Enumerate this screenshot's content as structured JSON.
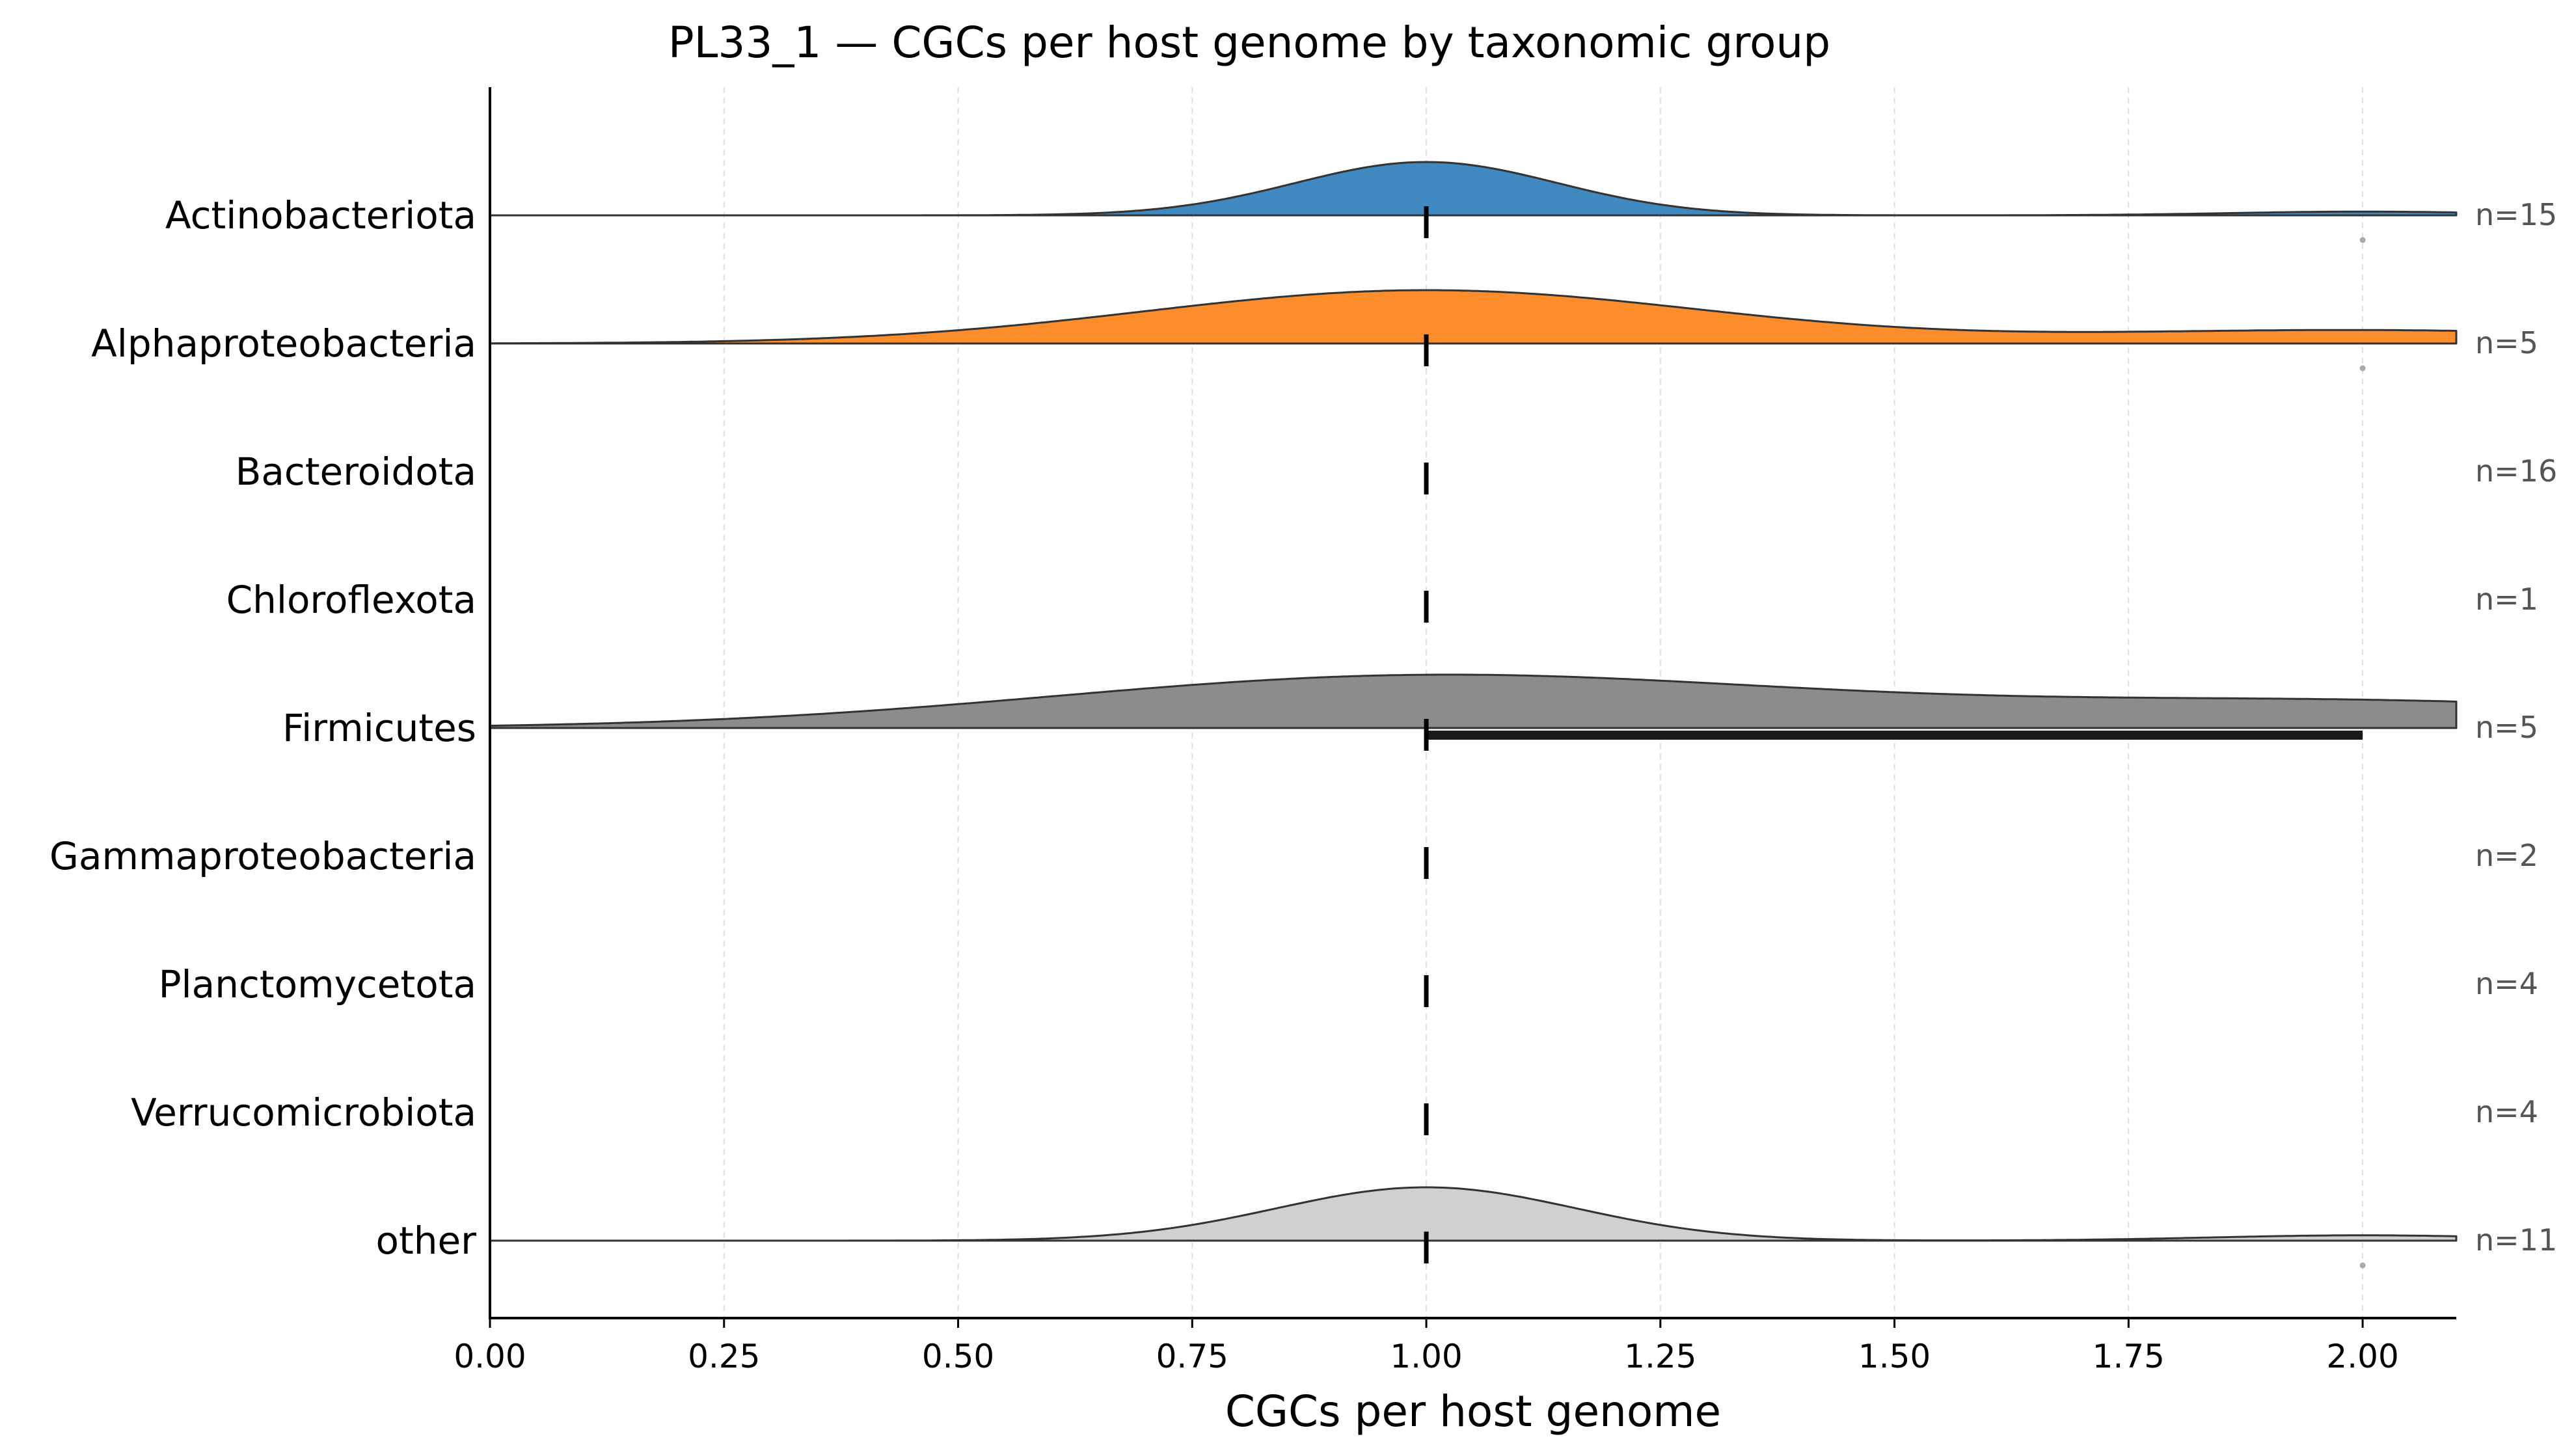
{
  "chart_data": {
    "type": "ridgeline",
    "title": "PL33_1 — CGCs per host genome by taxonomic group",
    "xlabel": "CGCs per host genome",
    "ylabel": "",
    "xlim": [
      0.0,
      2.1
    ],
    "xticks": [
      0.0,
      0.25,
      0.5,
      0.75,
      1.0,
      1.25,
      1.5,
      1.75,
      2.0
    ],
    "xtick_labels": [
      "0.00",
      "0.25",
      "0.50",
      "0.75",
      "1.00",
      "1.25",
      "1.50",
      "1.75",
      "2.00"
    ],
    "grid": "vertical-dashed",
    "legend": "none",
    "series": [
      {
        "name": "Actinobacteriota",
        "n_label": "n=15",
        "color": "#3f88c0",
        "density": true,
        "median": 1.0,
        "iqr": [
          1.0,
          1.0
        ],
        "outliers": [
          2.0
        ],
        "kde_components": [
          {
            "mu": 1.0,
            "sigma": 0.14,
            "w": 1.0
          },
          {
            "mu": 2.0,
            "sigma": 0.14,
            "w": 0.07
          }
        ]
      },
      {
        "name": "Alphaproteobacteria",
        "n_label": "n=5",
        "color": "#fd8d2b",
        "density": true,
        "median": 1.0,
        "iqr": [
          1.0,
          1.0
        ],
        "outliers": [
          2.0
        ],
        "kde_components": [
          {
            "mu": 1.0,
            "sigma": 0.3,
            "w": 1.0
          },
          {
            "mu": 2.0,
            "sigma": 0.3,
            "w": 0.25
          }
        ]
      },
      {
        "name": "Bacteroidota",
        "n_label": "n=16",
        "color": "#888888",
        "density": false,
        "median": 1.0,
        "iqr": [
          1.0,
          1.0
        ],
        "outliers": [],
        "kde_components": []
      },
      {
        "name": "Chloroflexota",
        "n_label": "n=1",
        "color": "#888888",
        "density": false,
        "median": 1.0,
        "iqr": [
          1.0,
          1.0
        ],
        "outliers": [],
        "kde_components": []
      },
      {
        "name": "Firmicutes",
        "n_label": "n=5",
        "color": "#8c8c8c",
        "density": true,
        "median": 1.0,
        "iqr": [
          1.0,
          2.0
        ],
        "outliers": [],
        "kde_components": [
          {
            "mu": 1.0,
            "sigma": 0.4,
            "w": 1.0
          },
          {
            "mu": 2.0,
            "sigma": 0.4,
            "w": 0.5
          }
        ]
      },
      {
        "name": "Gammaproteobacteria",
        "n_label": "n=2",
        "color": "#888888",
        "density": false,
        "median": 1.0,
        "iqr": [
          1.0,
          1.0
        ],
        "outliers": [],
        "kde_components": []
      },
      {
        "name": "Planctomycetota",
        "n_label": "n=4",
        "color": "#888888",
        "density": false,
        "median": 1.0,
        "iqr": [
          1.0,
          1.0
        ],
        "outliers": [],
        "kde_components": []
      },
      {
        "name": "Verrucomicrobiota",
        "n_label": "n=4",
        "color": "#888888",
        "density": false,
        "median": 1.0,
        "iqr": [
          1.0,
          1.0
        ],
        "outliers": [],
        "kde_components": []
      },
      {
        "name": "other",
        "n_label": "n=11",
        "color": "#d0d0d0",
        "density": true,
        "median": 1.0,
        "iqr": [
          1.0,
          1.0
        ],
        "outliers": [
          2.0
        ],
        "kde_components": [
          {
            "mu": 1.0,
            "sigma": 0.16,
            "w": 1.0
          },
          {
            "mu": 2.0,
            "sigma": 0.16,
            "w": 0.1
          }
        ]
      }
    ]
  }
}
